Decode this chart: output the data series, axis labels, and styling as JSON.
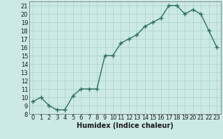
{
  "x": [
    0,
    1,
    2,
    3,
    4,
    5,
    6,
    7,
    8,
    9,
    10,
    11,
    12,
    13,
    14,
    15,
    16,
    17,
    18,
    19,
    20,
    21,
    22,
    23
  ],
  "y": [
    9.5,
    10.0,
    9.0,
    8.5,
    8.5,
    10.2,
    11.0,
    11.0,
    11.0,
    15.0,
    15.0,
    16.5,
    17.0,
    17.5,
    18.5,
    19.0,
    19.5,
    21.0,
    21.0,
    20.0,
    20.5,
    20.0,
    18.0,
    16.0
  ],
  "xlabel": "Humidex (Indice chaleur)",
  "xlim_min": -0.5,
  "xlim_max": 23.5,
  "ylim_min": 8,
  "ylim_max": 21.5,
  "yticks": [
    8,
    9,
    10,
    11,
    12,
    13,
    14,
    15,
    16,
    17,
    18,
    19,
    20,
    21
  ],
  "xticks": [
    0,
    1,
    2,
    3,
    4,
    5,
    6,
    7,
    8,
    9,
    10,
    11,
    12,
    13,
    14,
    15,
    16,
    17,
    18,
    19,
    20,
    21,
    22,
    23
  ],
  "line_color": "#2d6e62",
  "marker_color": "#2d6e62",
  "bg_color": "#cce9e5",
  "grid_color": "#aad0cc",
  "font_color": "#1a1a1a",
  "xlabel_fontsize": 7,
  "tick_fontsize": 6,
  "marker_size": 2.5,
  "line_width": 1.0
}
